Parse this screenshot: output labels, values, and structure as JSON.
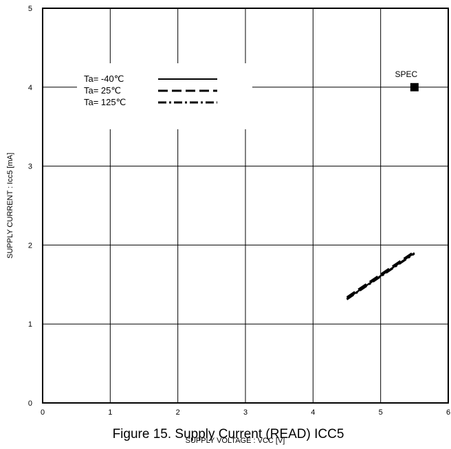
{
  "caption": "Figure 15. Supply Current (READ) ICC5",
  "chart_data": {
    "type": "line",
    "xlabel": "SUPPLY VOLTAGE : VCC [V]",
    "ylabel": "SUPPLY CURRENT : Icc5 [mA]",
    "xlim": [
      0,
      6
    ],
    "ylim": [
      0,
      5
    ],
    "xticks": [
      "0",
      "1",
      "2",
      "3",
      "4",
      "5",
      "6"
    ],
    "yticks": [
      "0",
      "1",
      "2",
      "3",
      "4",
      "5"
    ],
    "grid": true,
    "legend_position": "top-left",
    "series": [
      {
        "name": "Ta= -40℃",
        "style": "solid",
        "x": [
          4.5,
          5.5
        ],
        "y": [
          1.32,
          1.9
        ]
      },
      {
        "name": "Ta=  25℃",
        "style": "dashed",
        "x": [
          4.5,
          5.5
        ],
        "y": [
          1.34,
          1.92
        ]
      },
      {
        "name": "Ta= 125℃",
        "style": "dashdot",
        "x": [
          4.5,
          5.5
        ],
        "y": [
          1.31,
          1.89
        ]
      }
    ],
    "annotations": [
      {
        "label": "SPEC",
        "x": 5.5,
        "y": 4.0,
        "marker": "square"
      }
    ]
  }
}
